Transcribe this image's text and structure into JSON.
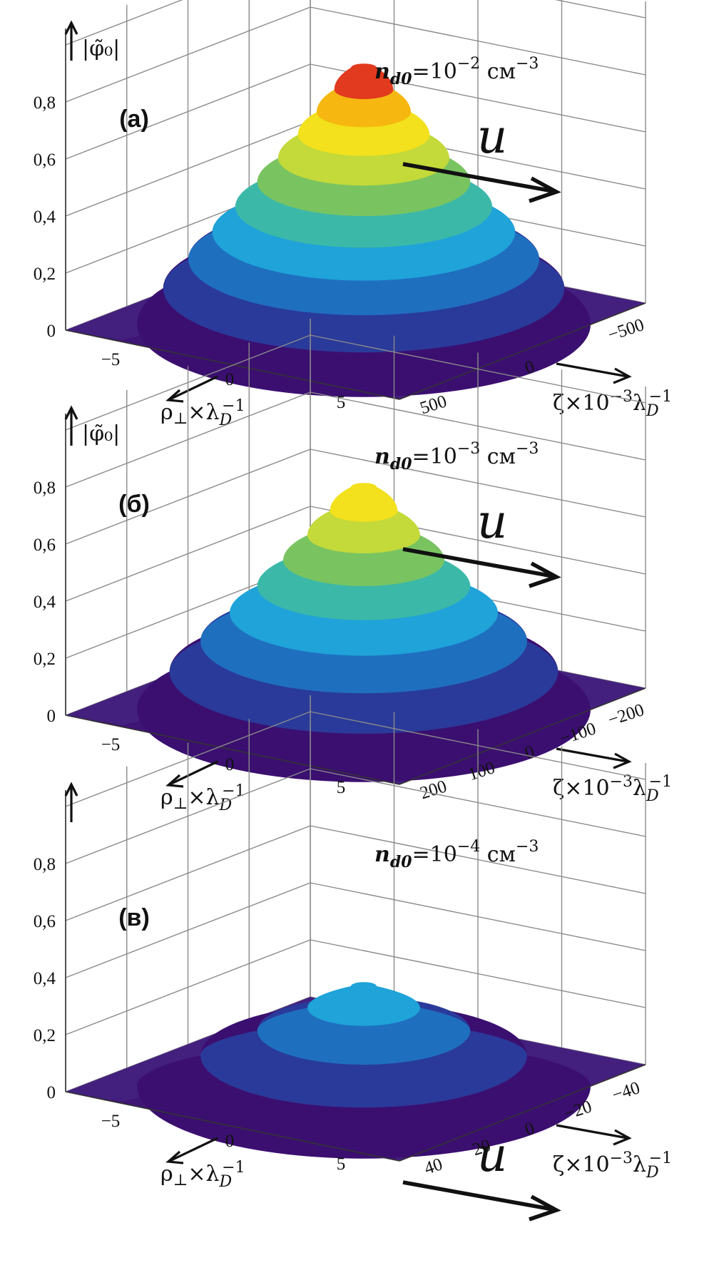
{
  "chart_data": [
    {
      "type": "surface3d",
      "panel_label": "(а)",
      "density_label": {
        "base": "n",
        "sub": "d0",
        "eq": "=10",
        "exp": "−2",
        "unit": " см",
        "unit_exp": "−3"
      },
      "z_axis_label": "|φ̃₀|",
      "z_ticks": [
        "0",
        "0,2",
        "0,4",
        "0,6",
        "0,8"
      ],
      "rho_ticks": [
        "−5",
        "0",
        "5"
      ],
      "zeta_ticks": [
        "500",
        "0",
        "−500"
      ],
      "rho_label": "ρ⊥×λD−1",
      "zeta_label": "ζ×10−3λD−1",
      "velocity_label": "u",
      "peak_value": 0.9,
      "colors": [
        "#3b0f70",
        "#2a3a9a",
        "#1f6fbf",
        "#1fa3d9",
        "#3cb8a8",
        "#79c461",
        "#c4d93a",
        "#f2e11c",
        "#f7b711",
        "#e13a1f"
      ]
    },
    {
      "type": "surface3d",
      "panel_label": "(б)",
      "density_label": {
        "base": "n",
        "sub": "d0",
        "eq": "=10",
        "exp": "−3",
        "unit": " см",
        "unit_exp": "−3"
      },
      "z_axis_label": "|φ̃₀|",
      "z_ticks": [
        "0",
        "0,2",
        "0,4",
        "0,6",
        "0,8"
      ],
      "rho_ticks": [
        "−5",
        "0",
        "5"
      ],
      "zeta_ticks": [
        "200",
        "100",
        "0",
        "−100",
        "−200"
      ],
      "rho_label": "ρ⊥×λD−1",
      "zeta_label": "ζ×10−3λD−1",
      "velocity_label": "u",
      "peak_value": 0.78,
      "colors": [
        "#3b0f70",
        "#2a3a9a",
        "#1f6fbf",
        "#1fa3d9",
        "#3cb8a8",
        "#79c461",
        "#c4d93a",
        "#f2e11c"
      ]
    },
    {
      "type": "surface3d",
      "panel_label": "(в)",
      "density_label": {
        "base": "n",
        "sub": "d0",
        "eq": "=10",
        "exp": "−4",
        "unit": " см",
        "unit_exp": "−3"
      },
      "z_axis_label": "",
      "z_ticks": [
        "0",
        "0,2",
        "0,4",
        "0,6",
        "0,8"
      ],
      "rho_ticks": [
        "−5",
        "0",
        "5"
      ],
      "zeta_ticks": [
        "40",
        "20",
        "0",
        "−20",
        "−40"
      ],
      "rho_label": "ρ⊥×λD−1",
      "zeta_label": "ζ×10−3λD−1",
      "velocity_label": "u",
      "peak_value": 0.35,
      "colors": [
        "#3b0f70",
        "#2a3a9a",
        "#1f6fbf",
        "#1fa3d9"
      ]
    }
  ]
}
